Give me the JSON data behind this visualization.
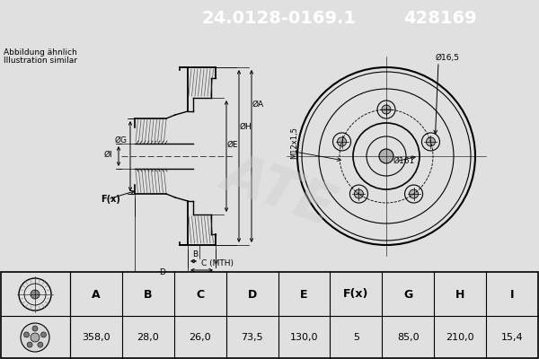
{
  "title_part_number": "24.0128-0169.1",
  "title_ref_number": "428169",
  "header_bg_color": "#0000cc",
  "header_text_color": "#ffffff",
  "body_bg_color": "#e0e0e0",
  "line_color": "#000000",
  "note_line1": "Abbildung ähnlich",
  "note_line2": "Illustration similar",
  "table_headers": [
    "A",
    "B",
    "C",
    "D",
    "E",
    "F(x)",
    "G",
    "H",
    "I"
  ],
  "table_values": [
    "358,0",
    "28,0",
    "26,0",
    "73,5",
    "130,0",
    "5",
    "85,0",
    "210,0",
    "15,4"
  ],
  "dim_phi16": "Ø16,5",
  "dim_m12": "M12x1,5",
  "dim_phi161": "Ø161",
  "dim_phiI": "ØI",
  "dim_phiG": "ØG",
  "dim_phiE": "ØE",
  "dim_phiH": "ØH",
  "dim_phiA": "ØA",
  "dim_Fx": "F(x)",
  "dim_B": "B",
  "dim_C": "C (MTH)",
  "dim_D": "D"
}
